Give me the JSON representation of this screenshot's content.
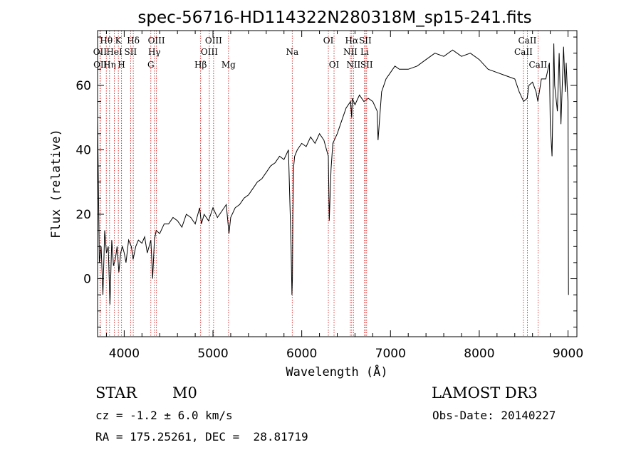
{
  "chart_data": {
    "type": "line",
    "title": "spec-56716-HD114322N280318M_sp15-241.fits",
    "xlabel": "Wavelength (Å)",
    "ylabel": "Flux (relative)",
    "xlim": [
      3700,
      9100
    ],
    "ylim": [
      -18,
      77
    ],
    "x_ticks": [
      4000,
      5000,
      6000,
      7000,
      8000,
      9000
    ],
    "y_ticks": [
      0,
      20,
      40,
      60
    ],
    "series": [
      {
        "x": [
          3700,
          3720,
          3740,
          3760,
          3780,
          3800,
          3820,
          3840,
          3860,
          3880,
          3900,
          3920,
          3940,
          3960,
          3980,
          4000,
          4020,
          4050,
          4080,
          4100,
          4130,
          4160,
          4200,
          4230,
          4260,
          4300,
          4320,
          4340,
          4360,
          4400,
          4450,
          4500,
          4550,
          4600,
          4650,
          4700,
          4750,
          4800,
          4850,
          4870,
          4900,
          4950,
          5000,
          5050,
          5100,
          5150,
          5180,
          5200,
          5250,
          5300,
          5350,
          5400,
          5450,
          5500,
          5550,
          5600,
          5650,
          5700,
          5750,
          5800,
          5850,
          5880,
          5890,
          5895,
          5900,
          5910,
          5920,
          5950,
          6000,
          6050,
          6100,
          6150,
          6200,
          6250,
          6280,
          6300,
          6310,
          6330,
          6350,
          6400,
          6450,
          6500,
          6550,
          6563,
          6570,
          6600,
          6650,
          6700,
          6750,
          6800,
          6850,
          6860,
          6900,
          6950,
          7000,
          7050,
          7100,
          7200,
          7300,
          7400,
          7500,
          7600,
          7700,
          7800,
          7900,
          8000,
          8100,
          8200,
          8300,
          8400,
          8450,
          8500,
          8540,
          8560,
          8600,
          8640,
          8660,
          8700,
          8750,
          8790,
          8800,
          8820,
          8830,
          8840,
          8850,
          8880,
          8900,
          8920,
          8950,
          8960,
          8970,
          8980,
          8990,
          9000,
          9005
        ],
        "values": [
          50,
          5,
          10,
          -5,
          15,
          8,
          10,
          -8,
          12,
          4,
          6,
          10,
          2,
          8,
          10,
          8,
          5,
          12,
          10,
          6,
          10,
          12,
          11,
          13,
          8,
          12,
          0,
          12,
          15,
          14,
          17,
          17,
          19,
          18,
          16,
          20,
          19,
          17,
          22,
          17,
          20,
          18,
          22,
          19,
          21,
          23,
          14,
          19,
          22,
          23,
          25,
          26,
          28,
          30,
          31,
          33,
          35,
          36,
          38,
          37,
          40,
          10,
          -5,
          0,
          20,
          35,
          38,
          40,
          42,
          41,
          44,
          42,
          45,
          43,
          40,
          38,
          18,
          34,
          42,
          45,
          49,
          53,
          55,
          50,
          56,
          54,
          57,
          55,
          56,
          55,
          52,
          43,
          58,
          62,
          64,
          66,
          65,
          65,
          66,
          68,
          70,
          69,
          71,
          69,
          70,
          68,
          65,
          64,
          63,
          62,
          58,
          55,
          56,
          60,
          61,
          58,
          55,
          62,
          62,
          67,
          48,
          38,
          55,
          73,
          60,
          52,
          70,
          48,
          72,
          64,
          58,
          67,
          60,
          55,
          -5
        ]
      }
    ],
    "lines": [
      {
        "w": 3727,
        "labels": [
          "OII"
        ],
        "row": 2
      },
      {
        "w": 3730,
        "labels": [
          "OII"
        ],
        "row": 3
      },
      {
        "w": 3798,
        "labels": [
          "Hθ"
        ],
        "row": 1
      },
      {
        "w": 3835,
        "labels": [
          "Hη"
        ],
        "row": 3
      },
      {
        "w": 3889,
        "labels": [
          "HeI"
        ],
        "row": 2
      },
      {
        "w": 3934,
        "labels": [
          "K"
        ],
        "row": 1
      },
      {
        "w": 3970,
        "labels": [
          "H"
        ],
        "row": 3
      },
      {
        "w": 4072,
        "labels": [
          "SII"
        ],
        "row": 2
      },
      {
        "w": 4102,
        "labels": [
          "Hδ"
        ],
        "row": 1
      },
      {
        "w": 4300,
        "labels": [
          "G"
        ],
        "row": 3
      },
      {
        "w": 4340,
        "labels": [
          "Hγ"
        ],
        "row": 2
      },
      {
        "w": 4363,
        "labels": [
          "OIII"
        ],
        "row": 1
      },
      {
        "w": 4861,
        "labels": [
          "Hβ"
        ],
        "row": 3
      },
      {
        "w": 4959,
        "labels": [
          "OIII"
        ],
        "row": 2
      },
      {
        "w": 5007,
        "labels": [
          "OIII"
        ],
        "row": 1
      },
      {
        "w": 5175,
        "labels": [
          "Mg"
        ],
        "row": 3
      },
      {
        "w": 5893,
        "labels": [
          "Na"
        ],
        "row": 2
      },
      {
        "w": 6300,
        "labels": [
          "OI"
        ],
        "row": 1
      },
      {
        "w": 6364,
        "labels": [
          "OI"
        ],
        "row": 3
      },
      {
        "w": 6548,
        "labels": [
          "NII"
        ],
        "row": 2
      },
      {
        "w": 6563,
        "labels": [
          "Hα"
        ],
        "row": 1
      },
      {
        "w": 6583,
        "labels": [
          "NII"
        ],
        "row": 3
      },
      {
        "w": 6708,
        "labels": [
          "Li"
        ],
        "row": 2
      },
      {
        "w": 6716,
        "labels": [
          "SII"
        ],
        "row": 1
      },
      {
        "w": 6731,
        "labels": [
          "SII"
        ],
        "row": 3
      },
      {
        "w": 8498,
        "labels": [
          "CaII"
        ],
        "row": 2
      },
      {
        "w": 8542,
        "labels": [
          "CaII"
        ],
        "row": 1
      },
      {
        "w": 8662,
        "labels": [
          "CaII"
        ],
        "row": 3
      }
    ],
    "grid": false,
    "legend": "none"
  },
  "info": {
    "object_type": "STAR",
    "subclass": "M0",
    "survey": "LAMOST DR3",
    "cz": "cz = -1.2 ± 6.0 km/s",
    "obs_date": "Obs-Date: 20140227",
    "coords": "RA = 175.25261, DEC =  28.81719"
  },
  "colors": {
    "spectrum": "#000000",
    "line_markers": "#cc0000",
    "axes": "#000000"
  }
}
